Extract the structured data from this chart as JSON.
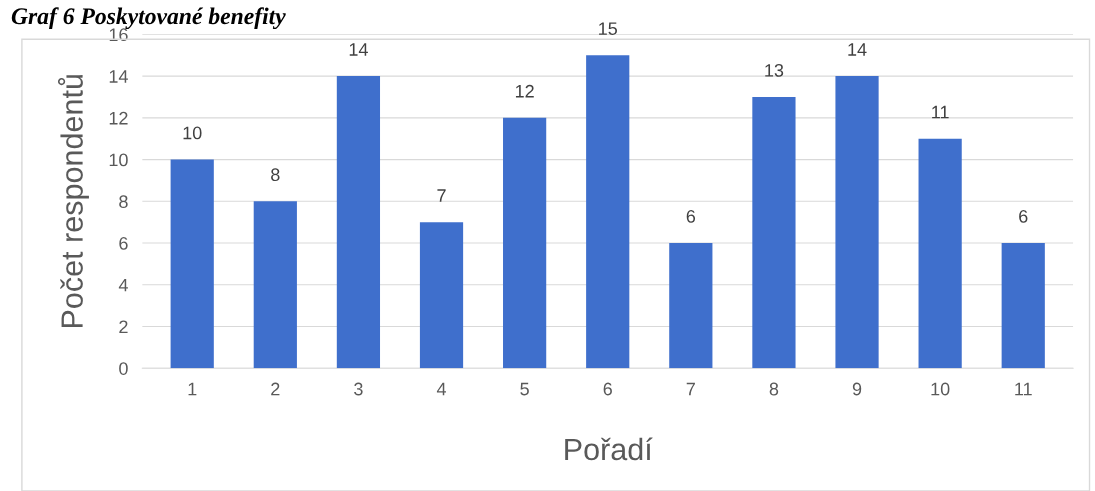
{
  "chart_data": {
    "type": "bar",
    "title": "Graf 6 Poskytované benefity",
    "xlabel": "Pořadí",
    "ylabel": "Počet respondentů",
    "categories": [
      "1",
      "2",
      "3",
      "4",
      "5",
      "6",
      "7",
      "8",
      "9",
      "10",
      "11"
    ],
    "values": [
      10,
      8,
      14,
      7,
      12,
      15,
      6,
      13,
      14,
      11,
      6
    ],
    "color": "#3f6fcc",
    "ylim": [
      0,
      16
    ],
    "yticks": [
      0,
      2,
      4,
      6,
      8,
      10,
      12,
      14,
      16
    ],
    "grid": "y",
    "data_labels": true
  }
}
